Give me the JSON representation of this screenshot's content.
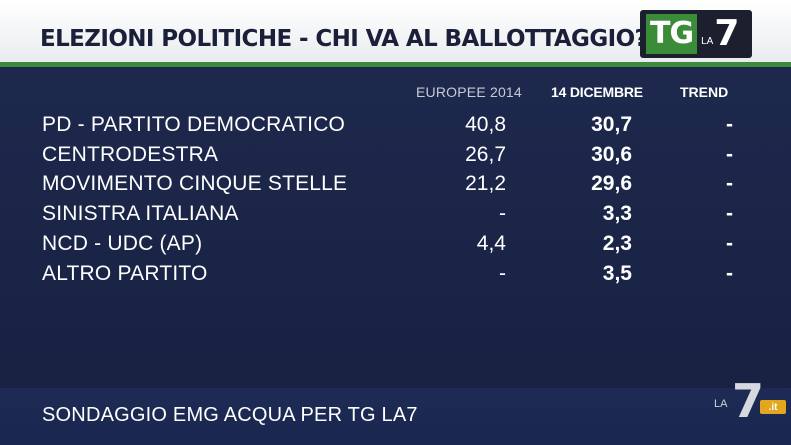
{
  "header": {
    "title": "ELEZIONI POLITICHE - CHI VA AL BALLOTTAGGIO?",
    "logo_tg": "TG",
    "logo_la": "LA",
    "logo_7": "7"
  },
  "table": {
    "columns": [
      "EUROPEE 2014",
      "14 DICEMBRE",
      "TREND"
    ],
    "rows": [
      {
        "party": "PD - PARTITO DEMOCRATICO",
        "europee": "40,8",
        "dicembre": "30,7",
        "trend": "-"
      },
      {
        "party": "CENTRODESTRA",
        "europee": "26,7",
        "dicembre": "30,6",
        "trend": "-"
      },
      {
        "party": "MOVIMENTO CINQUE STELLE",
        "europee": "21,2",
        "dicembre": "29,6",
        "trend": "-"
      },
      {
        "party": "SINISTRA ITALIANA",
        "europee": "-",
        "dicembre": "3,3",
        "trend": "-"
      },
      {
        "party": "NCD - UDC (AP)",
        "europee": "4,4",
        "dicembre": "2,3",
        "trend": "-"
      },
      {
        "party": "ALTRO PARTITO",
        "europee": "-",
        "dicembre": "3,5",
        "trend": "-"
      }
    ]
  },
  "footer": {
    "source": "SONDAGGIO EMG ACQUA PER TG LA7"
  },
  "watermark": {
    "la": "LA",
    "seven": "7",
    "it": ".it"
  },
  "colors": {
    "background": "#1e2a4f",
    "header_bg": "#ffffff",
    "header_text": "#1a1f3a",
    "accent_green": "#3d8a3c",
    "watermark_orange": "#e3a61c"
  }
}
